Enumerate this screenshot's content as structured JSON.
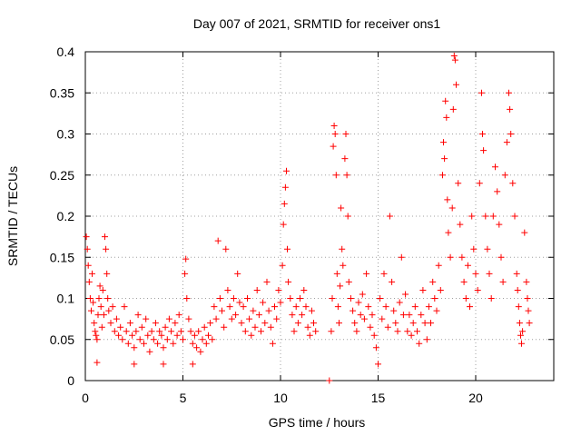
{
  "chart_data": {
    "type": "scatter",
    "title": "Day 007 of 2021, SRMTID for receiver ons1",
    "xlabel": "GPS time / hours",
    "ylabel": "SRMTID / TECUs",
    "xlim": [
      0,
      24
    ],
    "ylim": [
      0,
      0.4
    ],
    "xticks": [
      0,
      5,
      10,
      15,
      20
    ],
    "yticks": [
      0,
      0.05,
      0.1,
      0.15,
      0.2,
      0.25,
      0.3,
      0.35,
      0.4
    ],
    "xtick_labels": [
      "0",
      "5",
      "10",
      "15",
      "20"
    ],
    "ytick_labels": [
      "0",
      "0.05",
      "0.1",
      "0.15",
      "0.2",
      "0.25",
      "0.3",
      "0.35",
      "0.4"
    ],
    "grid": true,
    "marker": "+",
    "color": "#ff0000",
    "series": [
      {
        "name": "SRMTID",
        "points": [
          [
            0.05,
            0.175
          ],
          [
            0.1,
            0.16
          ],
          [
            0.15,
            0.14
          ],
          [
            0.2,
            0.12
          ],
          [
            0.25,
            0.1
          ],
          [
            0.3,
            0.085
          ],
          [
            0.35,
            0.13
          ],
          [
            0.4,
            0.095
          ],
          [
            0.45,
            0.07
          ],
          [
            0.5,
            0.06
          ],
          [
            0.55,
            0.055
          ],
          [
            0.6,
            0.05
          ],
          [
            0.6,
            0.022
          ],
          [
            0.65,
            0.08
          ],
          [
            0.7,
            0.1
          ],
          [
            0.75,
            0.115
          ],
          [
            0.8,
            0.09
          ],
          [
            0.85,
            0.065
          ],
          [
            0.9,
            0.11
          ],
          [
            0.95,
            0.08
          ],
          [
            1.0,
            0.175
          ],
          [
            1.05,
            0.16
          ],
          [
            1.1,
            0.13
          ],
          [
            1.15,
            0.1
          ],
          [
            1.2,
            0.085
          ],
          [
            1.3,
            0.07
          ],
          [
            1.4,
            0.09
          ],
          [
            1.5,
            0.06
          ],
          [
            1.6,
            0.075
          ],
          [
            1.7,
            0.055
          ],
          [
            1.8,
            0.065
          ],
          [
            1.9,
            0.05
          ],
          [
            2.0,
            0.09
          ],
          [
            2.1,
            0.06
          ],
          [
            2.2,
            0.045
          ],
          [
            2.3,
            0.07
          ],
          [
            2.4,
            0.055
          ],
          [
            2.5,
            0.04
          ],
          [
            2.5,
            0.02
          ],
          [
            2.6,
            0.06
          ],
          [
            2.7,
            0.08
          ],
          [
            2.8,
            0.05
          ],
          [
            2.9,
            0.065
          ],
          [
            3.0,
            0.045
          ],
          [
            3.1,
            0.075
          ],
          [
            3.2,
            0.055
          ],
          [
            3.3,
            0.035
          ],
          [
            3.4,
            0.06
          ],
          [
            3.5,
            0.05
          ],
          [
            3.6,
            0.07
          ],
          [
            3.7,
            0.045
          ],
          [
            3.8,
            0.06
          ],
          [
            3.9,
            0.055
          ],
          [
            4.0,
            0.04
          ],
          [
            4.0,
            0.02
          ],
          [
            4.1,
            0.065
          ],
          [
            4.2,
            0.05
          ],
          [
            4.3,
            0.075
          ],
          [
            4.4,
            0.06
          ],
          [
            4.5,
            0.045
          ],
          [
            4.6,
            0.07
          ],
          [
            4.7,
            0.055
          ],
          [
            4.8,
            0.08
          ],
          [
            4.9,
            0.06
          ],
          [
            5.0,
            0.05
          ],
          [
            5.1,
            0.13
          ],
          [
            5.15,
            0.148
          ],
          [
            5.2,
            0.1
          ],
          [
            5.3,
            0.075
          ],
          [
            5.4,
            0.06
          ],
          [
            5.5,
            0.045
          ],
          [
            5.5,
            0.02
          ],
          [
            5.6,
            0.055
          ],
          [
            5.7,
            0.04
          ],
          [
            5.8,
            0.06
          ],
          [
            5.9,
            0.035
          ],
          [
            6.0,
            0.05
          ],
          [
            6.1,
            0.065
          ],
          [
            6.2,
            0.045
          ],
          [
            6.3,
            0.055
          ],
          [
            6.4,
            0.07
          ],
          [
            6.5,
            0.05
          ],
          [
            6.6,
            0.09
          ],
          [
            6.7,
            0.075
          ],
          [
            6.8,
            0.17
          ],
          [
            6.9,
            0.1
          ],
          [
            7.0,
            0.085
          ],
          [
            7.1,
            0.065
          ],
          [
            7.2,
            0.16
          ],
          [
            7.3,
            0.11
          ],
          [
            7.4,
            0.09
          ],
          [
            7.5,
            0.075
          ],
          [
            7.6,
            0.1
          ],
          [
            7.7,
            0.08
          ],
          [
            7.8,
            0.13
          ],
          [
            7.9,
            0.095
          ],
          [
            8.0,
            0.07
          ],
          [
            8.1,
            0.09
          ],
          [
            8.2,
            0.06
          ],
          [
            8.3,
            0.1
          ],
          [
            8.4,
            0.075
          ],
          [
            8.5,
            0.055
          ],
          [
            8.6,
            0.085
          ],
          [
            8.7,
            0.065
          ],
          [
            8.8,
            0.11
          ],
          [
            8.9,
            0.08
          ],
          [
            9.0,
            0.06
          ],
          [
            9.1,
            0.095
          ],
          [
            9.2,
            0.07
          ],
          [
            9.3,
            0.12
          ],
          [
            9.4,
            0.085
          ],
          [
            9.5,
            0.065
          ],
          [
            9.6,
            0.045
          ],
          [
            9.7,
            0.09
          ],
          [
            9.8,
            0.075
          ],
          [
            9.9,
            0.11
          ],
          [
            10.0,
            0.095
          ],
          [
            10.1,
            0.14
          ],
          [
            10.15,
            0.19
          ],
          [
            10.2,
            0.215
          ],
          [
            10.25,
            0.235
          ],
          [
            10.3,
            0.255
          ],
          [
            10.35,
            0.16
          ],
          [
            10.4,
            0.12
          ],
          [
            10.5,
            0.1
          ],
          [
            10.6,
            0.08
          ],
          [
            10.7,
            0.06
          ],
          [
            10.8,
            0.09
          ],
          [
            10.9,
            0.07
          ],
          [
            11.0,
            0.1
          ],
          [
            11.1,
            0.08
          ],
          [
            11.2,
            0.11
          ],
          [
            11.3,
            0.09
          ],
          [
            11.4,
            0.065
          ],
          [
            11.5,
            0.055
          ],
          [
            11.6,
            0.085
          ],
          [
            11.7,
            0.07
          ],
          [
            11.8,
            0.06
          ],
          [
            12.5,
            0.0
          ],
          [
            12.6,
            0.06
          ],
          [
            12.65,
            0.1
          ],
          [
            12.7,
            0.285
          ],
          [
            12.75,
            0.31
          ],
          [
            12.8,
            0.3
          ],
          [
            12.85,
            0.25
          ],
          [
            12.9,
            0.13
          ],
          [
            12.95,
            0.09
          ],
          [
            13.0,
            0.07
          ],
          [
            13.05,
            0.115
          ],
          [
            13.1,
            0.21
          ],
          [
            13.15,
            0.16
          ],
          [
            13.2,
            0.14
          ],
          [
            13.3,
            0.27
          ],
          [
            13.35,
            0.3
          ],
          [
            13.4,
            0.25
          ],
          [
            13.45,
            0.2
          ],
          [
            13.5,
            0.12
          ],
          [
            13.6,
            0.1
          ],
          [
            13.7,
            0.085
          ],
          [
            13.8,
            0.07
          ],
          [
            13.9,
            0.06
          ],
          [
            14.0,
            0.095
          ],
          [
            14.1,
            0.08
          ],
          [
            14.2,
            0.105
          ],
          [
            14.3,
            0.075
          ],
          [
            14.4,
            0.13
          ],
          [
            14.5,
            0.09
          ],
          [
            14.6,
            0.065
          ],
          [
            14.7,
            0.08
          ],
          [
            14.8,
            0.055
          ],
          [
            14.9,
            0.04
          ],
          [
            15.0,
            0.02
          ],
          [
            15.1,
            0.1
          ],
          [
            15.2,
            0.075
          ],
          [
            15.3,
            0.13
          ],
          [
            15.4,
            0.09
          ],
          [
            15.5,
            0.065
          ],
          [
            15.6,
            0.2
          ],
          [
            15.7,
            0.12
          ],
          [
            15.8,
            0.085
          ],
          [
            15.9,
            0.07
          ],
          [
            16.0,
            0.06
          ],
          [
            16.1,
            0.095
          ],
          [
            16.2,
            0.15
          ],
          [
            16.3,
            0.08
          ],
          [
            16.4,
            0.105
          ],
          [
            16.5,
            0.06
          ],
          [
            16.6,
            0.08
          ],
          [
            16.7,
            0.055
          ],
          [
            16.8,
            0.07
          ],
          [
            16.9,
            0.09
          ],
          [
            17.0,
            0.06
          ],
          [
            17.1,
            0.045
          ],
          [
            17.2,
            0.08
          ],
          [
            17.3,
            0.11
          ],
          [
            17.4,
            0.07
          ],
          [
            17.5,
            0.05
          ],
          [
            17.6,
            0.09
          ],
          [
            17.7,
            0.07
          ],
          [
            17.8,
            0.12
          ],
          [
            17.9,
            0.1
          ],
          [
            18.0,
            0.085
          ],
          [
            18.1,
            0.14
          ],
          [
            18.2,
            0.11
          ],
          [
            18.3,
            0.25
          ],
          [
            18.35,
            0.29
          ],
          [
            18.4,
            0.27
          ],
          [
            18.45,
            0.34
          ],
          [
            18.5,
            0.32
          ],
          [
            18.55,
            0.22
          ],
          [
            18.6,
            0.18
          ],
          [
            18.7,
            0.15
          ],
          [
            18.8,
            0.21
          ],
          [
            18.85,
            0.33
          ],
          [
            18.9,
            0.395
          ],
          [
            18.95,
            0.39
          ],
          [
            19.0,
            0.36
          ],
          [
            19.1,
            0.24
          ],
          [
            19.2,
            0.19
          ],
          [
            19.3,
            0.15
          ],
          [
            19.4,
            0.12
          ],
          [
            19.5,
            0.1
          ],
          [
            19.6,
            0.14
          ],
          [
            19.7,
            0.09
          ],
          [
            19.8,
            0.2
          ],
          [
            19.9,
            0.16
          ],
          [
            20.0,
            0.13
          ],
          [
            20.1,
            0.11
          ],
          [
            20.2,
            0.24
          ],
          [
            20.3,
            0.35
          ],
          [
            20.35,
            0.3
          ],
          [
            20.4,
            0.28
          ],
          [
            20.5,
            0.2
          ],
          [
            20.6,
            0.16
          ],
          [
            20.7,
            0.13
          ],
          [
            20.8,
            0.1
          ],
          [
            20.9,
            0.2
          ],
          [
            21.0,
            0.26
          ],
          [
            21.1,
            0.23
          ],
          [
            21.2,
            0.19
          ],
          [
            21.3,
            0.15
          ],
          [
            21.4,
            0.12
          ],
          [
            21.5,
            0.25
          ],
          [
            21.6,
            0.29
          ],
          [
            21.7,
            0.35
          ],
          [
            21.75,
            0.33
          ],
          [
            21.8,
            0.3
          ],
          [
            21.9,
            0.24
          ],
          [
            22.0,
            0.2
          ],
          [
            22.1,
            0.13
          ],
          [
            22.15,
            0.11
          ],
          [
            22.2,
            0.09
          ],
          [
            22.25,
            0.07
          ],
          [
            22.3,
            0.055
          ],
          [
            22.35,
            0.045
          ],
          [
            22.4,
            0.06
          ],
          [
            22.5,
            0.18
          ],
          [
            22.6,
            0.12
          ],
          [
            22.65,
            0.1
          ],
          [
            22.7,
            0.085
          ],
          [
            22.75,
            0.07
          ]
        ]
      }
    ]
  }
}
